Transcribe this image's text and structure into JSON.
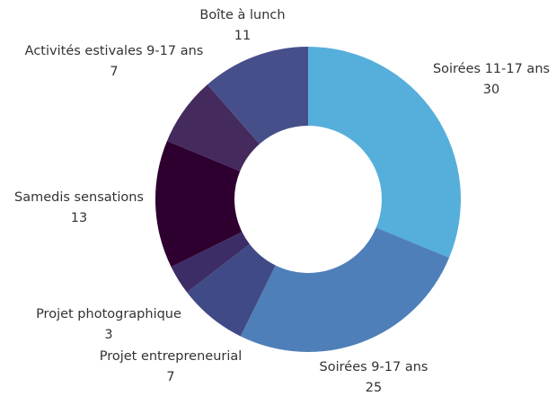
{
  "chart_data": {
    "type": "donut",
    "categories": [
      "Soirées 11-17 ans",
      "Soirées 9-17 ans",
      "Projet entrepreneurial",
      "Projet photographique",
      "Samedis sensations",
      "Activités estivales 9-17 ans",
      "Boîte à lunch"
    ],
    "values": [
      30,
      25,
      7,
      3,
      13,
      7,
      11
    ],
    "colors": [
      "#56aedb",
      "#4f7fb9",
      "#3f4a86",
      "#3d2d66",
      "#2d0030",
      "#452a5e",
      "#474f8a"
    ]
  }
}
